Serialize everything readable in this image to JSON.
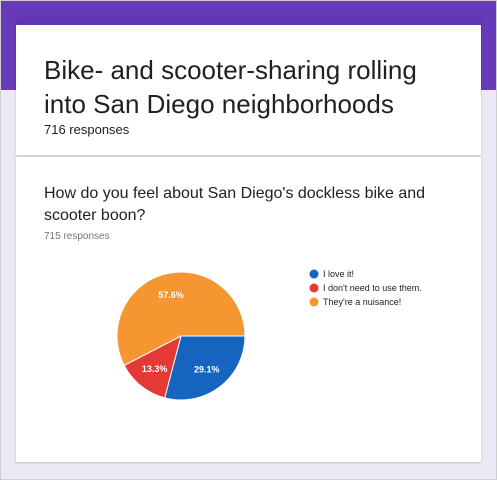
{
  "form": {
    "title": "Bike- and scooter-sharing rolling into San Diego neighborhoods",
    "responses_label": "716 responses"
  },
  "question": {
    "title": "How do you feel about San Diego's dockless bike and scooter boon?",
    "responses_label": "715 responses"
  },
  "chart_data": {
    "type": "pie",
    "title": "",
    "categories": [
      "I love it!",
      "I don't need to use them.",
      "They're a nuisance!"
    ],
    "values": [
      29.1,
      13.3,
      57.6
    ],
    "labels": [
      "29.1%",
      "13.3%",
      "57.6%"
    ],
    "colors": [
      "#1565c0",
      "#e53935",
      "#f59631"
    ],
    "legend": "right"
  }
}
